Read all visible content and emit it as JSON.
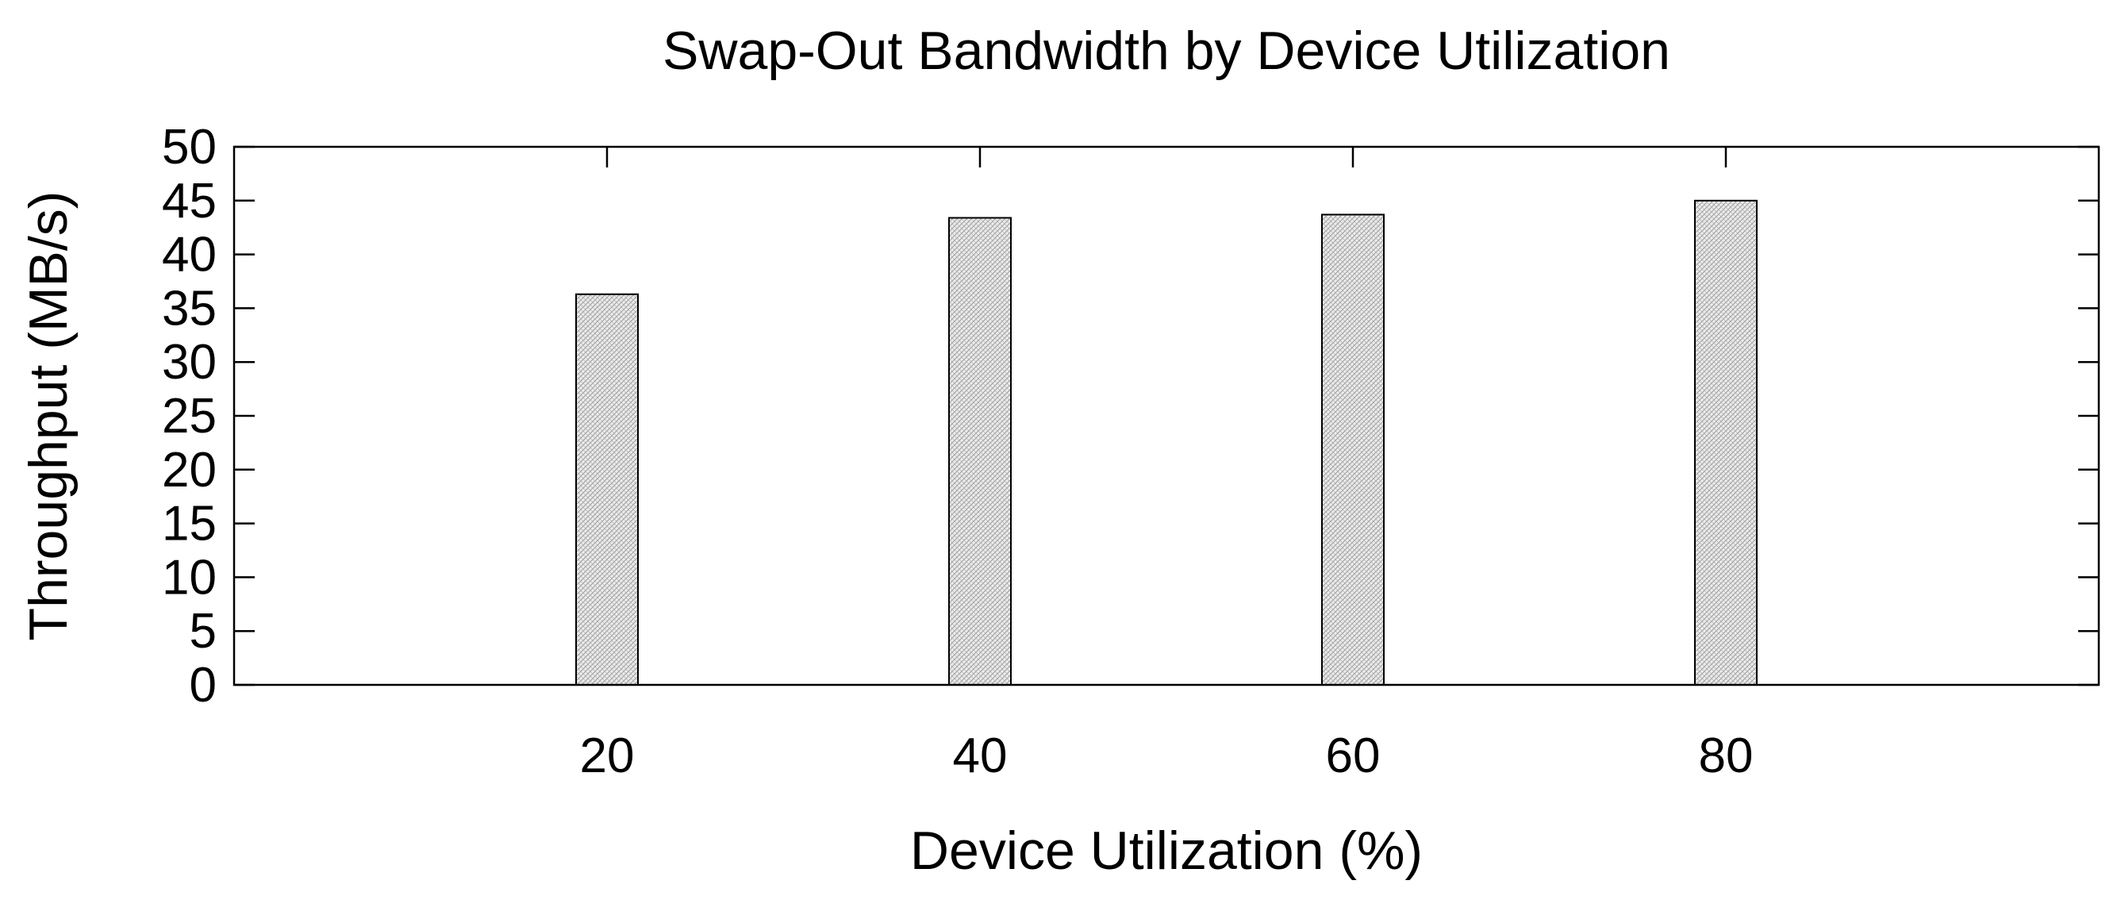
{
  "chart_data": {
    "type": "bar",
    "title": "Swap-Out Bandwidth by Device Utilization",
    "xlabel": "Device Utilization (%)",
    "ylabel": "Throughput (MB/s)",
    "categories": [
      "20",
      "40",
      "60",
      "80"
    ],
    "x": [
      20,
      40,
      60,
      80
    ],
    "xlim": [
      0,
      100
    ],
    "values": [
      36.3,
      43.4,
      43.7,
      45.0
    ],
    "ylim": [
      0,
      50
    ],
    "yticks": [
      0,
      5,
      10,
      15,
      20,
      25,
      30,
      35,
      40,
      45,
      50
    ],
    "ytick_labels": [
      "0",
      "5",
      "10",
      "15",
      "20",
      "25",
      "30",
      "35",
      "40",
      "45",
      "50"
    ],
    "grid": false,
    "legend": null,
    "colors": {
      "bar_fill": "#e6e6e6",
      "bar_stroke": "#000000",
      "axis": "#000000",
      "background": "#ffffff"
    }
  }
}
